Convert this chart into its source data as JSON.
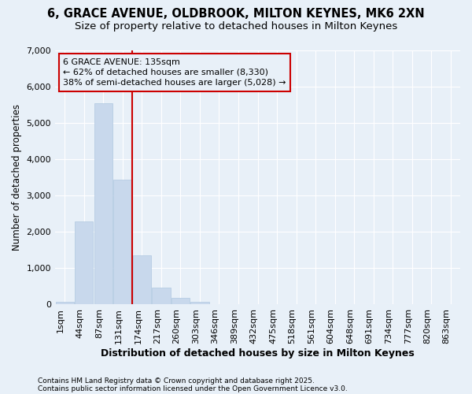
{
  "title_line1": "6, GRACE AVENUE, OLDBROOK, MILTON KEYNES, MK6 2XN",
  "title_line2": "Size of property relative to detached houses in Milton Keynes",
  "xlabel": "Distribution of detached houses by size in Milton Keynes",
  "ylabel": "Number of detached properties",
  "categories": [
    "1sqm",
    "44sqm",
    "87sqm",
    "131sqm",
    "174sqm",
    "217sqm",
    "260sqm",
    "303sqm",
    "346sqm",
    "389sqm",
    "432sqm",
    "475sqm",
    "518sqm",
    "561sqm",
    "604sqm",
    "648sqm",
    "691sqm",
    "734sqm",
    "777sqm",
    "820sqm",
    "863sqm"
  ],
  "values": [
    75,
    2300,
    5550,
    3450,
    1350,
    470,
    175,
    75,
    10,
    0,
    0,
    0,
    0,
    0,
    0,
    0,
    0,
    0,
    0,
    0,
    0
  ],
  "bar_color": "#c8d8ec",
  "bar_edgecolor": "#b0c8e0",
  "bg_color": "#e8f0f8",
  "grid_color": "#ffffff",
  "vline_color": "#cc0000",
  "vline_x_idx": 3,
  "annotation_text": "6 GRACE AVENUE: 135sqm\n← 62% of detached houses are smaller (8,330)\n38% of semi-detached houses are larger (5,028) →",
  "ylim": [
    0,
    7000
  ],
  "yticks": [
    0,
    1000,
    2000,
    3000,
    4000,
    5000,
    6000,
    7000
  ],
  "footnote1": "Contains HM Land Registry data © Crown copyright and database right 2025.",
  "footnote2": "Contains public sector information licensed under the Open Government Licence v3.0.",
  "title_fontsize": 10.5,
  "subtitle_fontsize": 9.5,
  "xlabel_fontsize": 9,
  "ylabel_fontsize": 8.5,
  "tick_fontsize": 8
}
